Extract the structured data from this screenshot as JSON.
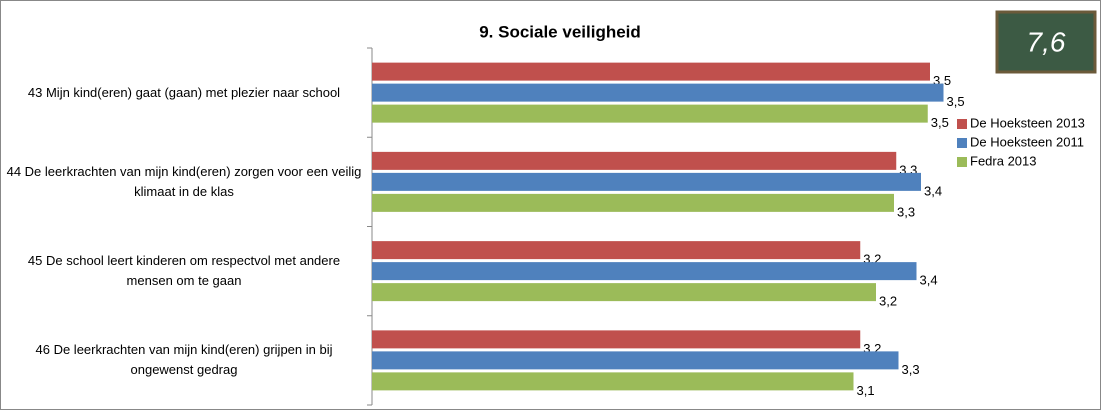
{
  "chart_data": {
    "type": "hbar",
    "title": "9. Sociale veiligheid",
    "annotations": [
      "7,6"
    ],
    "categories": [
      "43 Mijn kind(eren) gaat (gaan) met plezier naar school",
      "44 De leerkrachten van mijn kind(eren) zorgen voor een veilig klimaat in de klas",
      "45 De school leert kinderen om respectvol met andere mensen om te gaan",
      "46 De leerkrachten van mijn kind(eren) grijpen in bij ongewenst gedrag"
    ],
    "series": [
      {
        "name": "De Hoeksteen 2013",
        "color": "#c0504d",
        "values": [
          3.48,
          3.33,
          3.17,
          3.17
        ],
        "value_labels": [
          "3,5",
          "3,3",
          "3,2",
          "3,2"
        ]
      },
      {
        "name": "De Hoeksteen 2011",
        "color": "#4f81bd",
        "values": [
          3.54,
          3.44,
          3.42,
          3.34
        ],
        "value_labels": [
          "3,5",
          "3,4",
          "3,4",
          "3,3"
        ]
      },
      {
        "name": "Fedra 2013",
        "color": "#9bbb59",
        "values": [
          3.47,
          3.32,
          3.24,
          3.14
        ],
        "value_labels": [
          "3,5",
          "3,3",
          "3,2",
          "3,1"
        ]
      }
    ],
    "xlim": [
      1,
      4
    ],
    "legend": "right"
  }
}
